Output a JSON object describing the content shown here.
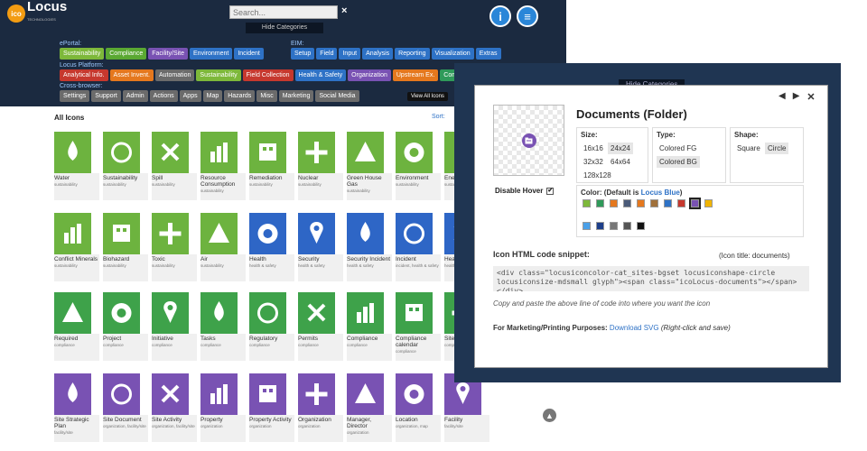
{
  "header": {
    "logo_prefix": "ico",
    "logo_text": "Locus",
    "logo_sub": "TECHNOLOGIES",
    "search_placeholder": "Search...",
    "search_clear": "×",
    "hide_categories": "Hide Categories",
    "info_icon": "i",
    "chat_icon": "≡"
  },
  "categories": {
    "eportal_label": "ePortal:",
    "eportal": [
      "Sustainability",
      "Compliance",
      "Facility/Site",
      "Environment",
      "Incident"
    ],
    "eim_label": "EIM:",
    "eim": [
      "Setup",
      "Field",
      "Input",
      "Analysis",
      "Reporting",
      "Visualization",
      "Extras"
    ],
    "platform_label": "Locus Platform:",
    "platform": [
      "Analytical Info.",
      "Asset Invent.",
      "Automation",
      "Sustainability",
      "Field Collection",
      "Health & Safety",
      "Organization",
      "Upstream Ex.",
      "Comp"
    ],
    "cross_label": "Cross-browser:",
    "cross": [
      "Settings",
      "Support",
      "Admin",
      "Actions",
      "Apps",
      "Map",
      "Hazards",
      "Misc",
      "Marketing",
      "Social Media"
    ],
    "view_all": "View All Icons"
  },
  "content": {
    "title": "All Icons",
    "sort_label": "Sort:",
    "rows": [
      [
        {
          "name": "Water",
          "cat": "sustainability",
          "icon": "water-drop-icon"
        },
        {
          "name": "Sustainability",
          "cat": "sustainability",
          "icon": "recycle-icon"
        },
        {
          "name": "Spill",
          "cat": "sustainability",
          "icon": "barrel-spill-icon"
        },
        {
          "name": "Resource Consumption",
          "cat": "sustainability",
          "icon": "gauge-icon"
        },
        {
          "name": "Remediation",
          "cat": "sustainability",
          "icon": "excavator-icon"
        },
        {
          "name": "Nuclear",
          "cat": "sustainability",
          "icon": "radiation-icon"
        },
        {
          "name": "Green House Gas",
          "cat": "sustainability",
          "icon": "factory-icon"
        },
        {
          "name": "Environment",
          "cat": "sustainability",
          "icon": "globe-icon"
        },
        {
          "name": "Ene",
          "cat": "sustainability",
          "icon": "energy-icon"
        }
      ],
      [
        {
          "name": "Conflict Minerals",
          "cat": "sustainability",
          "icon": "africa-icon"
        },
        {
          "name": "Biohazard",
          "cat": "sustainability",
          "icon": "biohazard-icon"
        },
        {
          "name": "Toxic",
          "cat": "sustainability",
          "icon": "skull-icon"
        },
        {
          "name": "Air",
          "cat": "sustainability",
          "icon": "chimney-icon"
        },
        {
          "name": "Health",
          "cat": "health & safety",
          "icon": "star-of-life-icon"
        },
        {
          "name": "Security",
          "cat": "health & safety",
          "icon": "fingerprint-icon"
        },
        {
          "name": "Security Incident",
          "cat": "health & safety",
          "icon": "fingerprint-alert-icon"
        },
        {
          "name": "Incident",
          "cat": "incident, health & safety",
          "icon": "alert-person-icon"
        },
        {
          "name": "Healt",
          "cat": "health",
          "icon": "health-icon"
        }
      ],
      [
        {
          "name": "Required",
          "cat": "compliance",
          "icon": "required-icon"
        },
        {
          "name": "Project",
          "cat": "compliance",
          "icon": "flowchart-icon"
        },
        {
          "name": "Initiative",
          "cat": "compliance",
          "icon": "arrows-up-icon"
        },
        {
          "name": "Tasks",
          "cat": "compliance",
          "icon": "clipboard-check-icon"
        },
        {
          "name": "Regulatory",
          "cat": "compliance",
          "icon": "courthouse-icon"
        },
        {
          "name": "Permits",
          "cat": "compliance",
          "icon": "stamp-icon"
        },
        {
          "name": "Compliance",
          "cat": "compliance",
          "icon": "checkmark-icon"
        },
        {
          "name": "Compliance calendar",
          "cat": "compliance",
          "icon": "calendar-check-icon"
        },
        {
          "name": "Site",
          "cat": "compliance",
          "icon": "site-icon"
        }
      ],
      [
        {
          "name": "Site Strategic Plan",
          "cat": "facility/site",
          "icon": "factory-plan-icon"
        },
        {
          "name": "Site Document",
          "cat": "organization, facility/site",
          "icon": "factory-doc-icon"
        },
        {
          "name": "Site Activity",
          "cat": "organization, facility/site",
          "icon": "site-activity-icon"
        },
        {
          "name": "Property",
          "cat": "organization",
          "icon": "building-icon"
        },
        {
          "name": "Property Activity",
          "cat": "organization",
          "icon": "building-activity-icon"
        },
        {
          "name": "Organization",
          "cat": "organization",
          "icon": "people-icon"
        },
        {
          "name": "Manager, Director",
          "cat": "organization",
          "icon": "manager-icon"
        },
        {
          "name": "Location",
          "cat": "organization, map",
          "icon": "map-pin-icon"
        },
        {
          "name": "Facility",
          "cat": "facility/site",
          "icon": "facility-icon"
        }
      ]
    ]
  },
  "overlay": {
    "bg_hide_categories": "Hide Categories"
  },
  "modal": {
    "title": "Documents (Folder)",
    "prev": "◀",
    "next": "▶",
    "close": "✕",
    "disable_hover": "Disable Hover",
    "disable_hover_checked": "✔",
    "size_label": "Size:",
    "sizes": [
      "16x16",
      "24x24",
      "32x32",
      "64x64",
      "128x128"
    ],
    "size_selected": "24x24",
    "type_label": "Type:",
    "types": [
      "Colored FG",
      "Colored BG"
    ],
    "type_selected": "Colored BG",
    "shape_label": "Shape:",
    "shapes": [
      "Square",
      "Circle"
    ],
    "shape_selected": "Circle",
    "color_label": "Color: (Default is ",
    "color_default": "Locus Blue",
    "color_label_end": ")",
    "swatches_row1": [
      "#7db83a",
      "#2f9a5a",
      "#e5781e",
      "#4a5a78",
      "#e5781e",
      "#a0703a",
      "#2e72c6",
      "#c6382e",
      "#7952b3",
      "#f0b400"
    ],
    "swatches_row2": [
      "#4aa0e8",
      "#1e3f8a",
      "#777777",
      "#555555",
      "#111111"
    ],
    "swatch_selected": 8,
    "snippet_title": "Icon HTML code snippet:",
    "snippet_hint": "(Icon title: documents)",
    "snippet_code": "<div class=\"locusiconcolor-cat_sites-bgset locusiconshape-circle locusiconsize-mdsmall glyph\"><span class=\"icoLocus-documents\"></span></div>",
    "copy_note": "Copy and paste the above line of code into where you want the icon",
    "marketing_label": "For Marketing/Printing Purposes:",
    "download_link": "Download SVG",
    "marketing_note": "(Right-click and save)"
  },
  "colors": {
    "sustainability": "#6db33f",
    "health": "#2e66c6",
    "compliance": "#3ea24a",
    "organization": "#7952b3"
  }
}
